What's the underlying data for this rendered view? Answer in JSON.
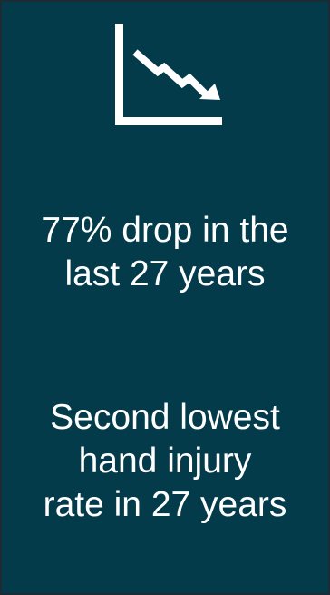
{
  "icon": "declining-trend-chart-icon",
  "colors": {
    "background": "#033b4b",
    "border": "#1c2c34",
    "text": "#ffffff"
  },
  "stats": [
    {
      "lines": [
        "77% drop in the",
        "last 27 years"
      ]
    },
    {
      "lines": [
        "Second lowest",
        "hand injury",
        "rate in 27 years"
      ]
    }
  ]
}
